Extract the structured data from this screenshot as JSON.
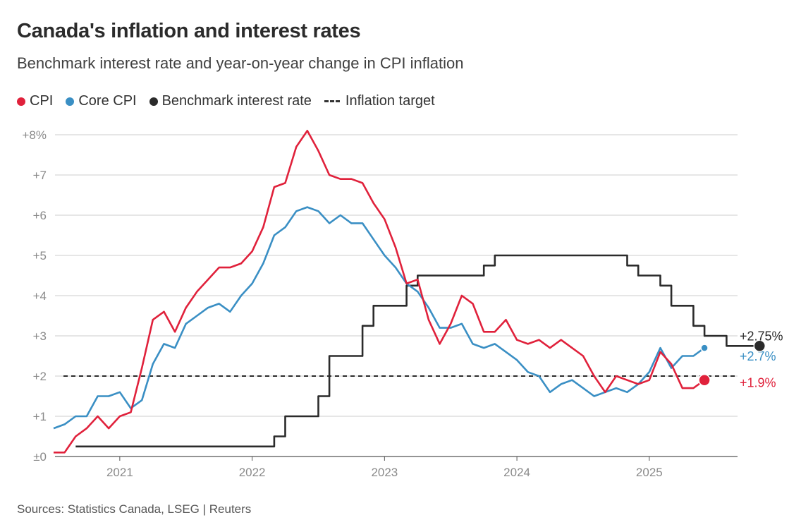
{
  "title": "Canada's inflation and interest rates",
  "subtitle": "Benchmark interest rate and year-on-year change in CPI inflation",
  "source": "Sources: Statistics Canada, LSEG | Reuters",
  "colors": {
    "cpi": "#e0213b",
    "core": "#3a8fc4",
    "rate": "#2b2b2b",
    "grid": "#cccccc",
    "axis": "#555555"
  },
  "chart_data": {
    "type": "line",
    "title": "Canada's inflation and interest rates",
    "xlabel": "",
    "ylabel": "",
    "ylim": [
      0,
      8
    ],
    "y_ticks": [
      {
        "value": 0,
        "label": "±0"
      },
      {
        "value": 1,
        "label": "+1"
      },
      {
        "value": 2,
        "label": "+2"
      },
      {
        "value": 3,
        "label": "+3"
      },
      {
        "value": 4,
        "label": "+4"
      },
      {
        "value": 5,
        "label": "+5"
      },
      {
        "value": 6,
        "label": "+6"
      },
      {
        "value": 7,
        "label": "+7"
      },
      {
        "value": 8,
        "label": "+8%"
      }
    ],
    "x_ticks": [
      "2021",
      "2022",
      "2023",
      "2024",
      "2025"
    ],
    "x_start": "2020-07",
    "legend": [
      "CPI",
      "Core CPI",
      "Benchmark interest rate",
      "Inflation target"
    ],
    "inflation_target": 2,
    "series": [
      {
        "name": "CPI",
        "key": "cpi",
        "start": "2020-07",
        "step": false,
        "end_label": "+1.9%",
        "values": [
          0.1,
          0.1,
          0.5,
          0.7,
          1.0,
          0.7,
          1.0,
          1.1,
          2.2,
          3.4,
          3.6,
          3.1,
          3.7,
          4.1,
          4.4,
          4.7,
          4.7,
          4.8,
          5.1,
          5.7,
          6.7,
          6.8,
          7.7,
          8.1,
          7.6,
          7.0,
          6.9,
          6.9,
          6.8,
          6.3,
          5.9,
          5.2,
          4.3,
          4.4,
          3.4,
          2.8,
          3.3,
          4.0,
          3.8,
          3.1,
          3.1,
          3.4,
          2.9,
          2.8,
          2.9,
          2.7,
          2.9,
          2.7,
          2.5,
          2.0,
          1.6,
          2.0,
          1.9,
          1.8,
          1.9,
          2.6,
          2.3,
          1.7,
          1.7,
          1.9
        ]
      },
      {
        "name": "Core CPI",
        "key": "core",
        "start": "2020-07",
        "step": false,
        "end_label": "+2.7%",
        "values": [
          0.7,
          0.8,
          1.0,
          1.0,
          1.5,
          1.5,
          1.6,
          1.2,
          1.4,
          2.3,
          2.8,
          2.7,
          3.3,
          3.5,
          3.7,
          3.8,
          3.6,
          4.0,
          4.3,
          4.8,
          5.5,
          5.7,
          6.1,
          6.2,
          6.1,
          5.8,
          6.0,
          5.8,
          5.8,
          5.4,
          5.0,
          4.7,
          4.3,
          4.1,
          3.7,
          3.2,
          3.2,
          3.3,
          2.8,
          2.7,
          2.8,
          2.6,
          2.4,
          2.1,
          2.0,
          1.6,
          1.8,
          1.9,
          1.7,
          1.5,
          1.6,
          1.7,
          1.6,
          1.8,
          2.1,
          2.7,
          2.2,
          2.5,
          2.5,
          2.7
        ]
      },
      {
        "name": "Benchmark interest rate",
        "key": "rate",
        "start": "2020-09",
        "step": true,
        "end_label": "+2.75%",
        "values": [
          0.25,
          0.25,
          0.25,
          0.25,
          0.25,
          0.25,
          0.25,
          0.25,
          0.25,
          0.25,
          0.25,
          0.25,
          0.25,
          0.25,
          0.25,
          0.25,
          0.25,
          0.25,
          0.5,
          1.0,
          1.0,
          1.0,
          1.5,
          2.5,
          2.5,
          2.5,
          3.25,
          3.75,
          3.75,
          3.75,
          4.25,
          4.5,
          4.5,
          4.5,
          4.5,
          4.5,
          4.5,
          4.75,
          5.0,
          5.0,
          5.0,
          5.0,
          5.0,
          5.0,
          5.0,
          5.0,
          5.0,
          5.0,
          5.0,
          5.0,
          4.75,
          4.5,
          4.5,
          4.25,
          3.75,
          3.75,
          3.25,
          3.0,
          3.0,
          2.75,
          2.75,
          2.75,
          2.75
        ]
      }
    ]
  }
}
